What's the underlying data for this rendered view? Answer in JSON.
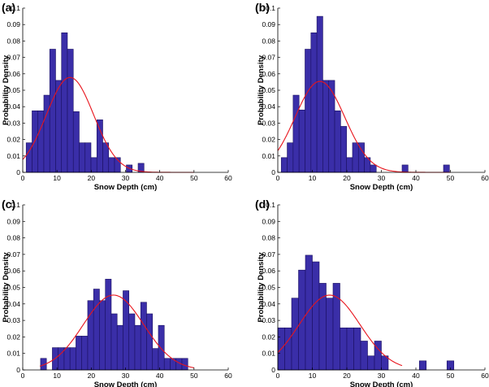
{
  "colors": {
    "bar": "#3a2ea8",
    "fit": "#e8141c"
  },
  "chart_data": [
    {
      "type": "bar",
      "panel_label": "(a)",
      "xlabel": "Snow Depth (cm)",
      "ylabel": "Probability Density",
      "xlim": [
        0,
        60
      ],
      "ylim": [
        0,
        0.1
      ],
      "xticks": [
        "0",
        "10",
        "20",
        "30",
        "40",
        "50",
        "60"
      ],
      "yticks": [
        "0",
        "0.01",
        "0.02",
        "0.03",
        "0.04",
        "0.05",
        "0.06",
        "0.07",
        "0.08",
        "0.09",
        "0.1"
      ],
      "bin_width": 1.72,
      "bins": [
        {
          "x": 1.0,
          "value": 0.018
        },
        {
          "x": 2.72,
          "value": 0.0375
        },
        {
          "x": 4.44,
          "value": 0.0375
        },
        {
          "x": 6.16,
          "value": 0.047
        },
        {
          "x": 7.88,
          "value": 0.075
        },
        {
          "x": 9.6,
          "value": 0.056
        },
        {
          "x": 11.32,
          "value": 0.085
        },
        {
          "x": 13.04,
          "value": 0.075
        },
        {
          "x": 14.76,
          "value": 0.037
        },
        {
          "x": 16.48,
          "value": 0.018
        },
        {
          "x": 18.2,
          "value": 0.018
        },
        {
          "x": 19.92,
          "value": 0.009
        },
        {
          "x": 21.64,
          "value": 0.032
        },
        {
          "x": 23.36,
          "value": 0.018
        },
        {
          "x": 25.08,
          "value": 0.009
        },
        {
          "x": 26.8,
          "value": 0.009
        },
        {
          "x": 30.24,
          "value": 0.0045
        },
        {
          "x": 33.68,
          "value": 0.0055
        }
      ],
      "fit": {
        "name": "Normal fit",
        "mean": 13.8,
        "sd": 6.9,
        "x_range": [
          0,
          50
        ]
      }
    },
    {
      "type": "bar",
      "panel_label": "(b)",
      "xlabel": "Snow Depth (cm)",
      "ylabel": "Probability Density",
      "xlim": [
        0,
        60
      ],
      "ylim": [
        0,
        0.1
      ],
      "xticks": [
        "0",
        "10",
        "20",
        "30",
        "40",
        "50",
        "60"
      ],
      "yticks": [
        "0",
        "0.01",
        "0.02",
        "0.03",
        "0.04",
        "0.05",
        "0.06",
        "0.07",
        "0.08",
        "0.09",
        "0.1"
      ],
      "bin_width": 1.72,
      "bins": [
        {
          "x": 1.0,
          "value": 0.009
        },
        {
          "x": 2.72,
          "value": 0.018
        },
        {
          "x": 4.44,
          "value": 0.047
        },
        {
          "x": 6.16,
          "value": 0.038
        },
        {
          "x": 7.88,
          "value": 0.075
        },
        {
          "x": 9.6,
          "value": 0.085
        },
        {
          "x": 11.32,
          "value": 0.095
        },
        {
          "x": 13.04,
          "value": 0.056
        },
        {
          "x": 14.76,
          "value": 0.056
        },
        {
          "x": 16.48,
          "value": 0.0375
        },
        {
          "x": 18.2,
          "value": 0.028
        },
        {
          "x": 19.92,
          "value": 0.009
        },
        {
          "x": 21.64,
          "value": 0.018
        },
        {
          "x": 23.36,
          "value": 0.018
        },
        {
          "x": 25.08,
          "value": 0.009
        },
        {
          "x": 26.8,
          "value": 0.0045
        },
        {
          "x": 36.0,
          "value": 0.0045
        },
        {
          "x": 48.0,
          "value": 0.0045
        }
      ],
      "fit": {
        "name": "Normal fit",
        "mean": 12.2,
        "sd": 7.2,
        "x_range": [
          0,
          50
        ]
      }
    },
    {
      "type": "bar",
      "panel_label": "(c)",
      "xlabel": "Snow Depth (cm)",
      "ylabel": "Probability Density",
      "xlim": [
        0,
        60
      ],
      "ylim": [
        0,
        0.1
      ],
      "xticks": [
        "0",
        "10",
        "20",
        "30",
        "40",
        "50",
        "60"
      ],
      "yticks": [
        "0",
        "0.01",
        "0.02",
        "0.03",
        "0.04",
        "0.05",
        "0.06",
        "0.07",
        "0.08",
        "0.09",
        "0.1"
      ],
      "bin_width": 1.72,
      "bins": [
        {
          "x": 5.2,
          "value": 0.007
        },
        {
          "x": 8.64,
          "value": 0.0135
        },
        {
          "x": 10.36,
          "value": 0.0135
        },
        {
          "x": 12.08,
          "value": 0.0135
        },
        {
          "x": 13.8,
          "value": 0.0135
        },
        {
          "x": 15.52,
          "value": 0.0205
        },
        {
          "x": 17.24,
          "value": 0.0205
        },
        {
          "x": 18.96,
          "value": 0.042
        },
        {
          "x": 20.68,
          "value": 0.049
        },
        {
          "x": 22.4,
          "value": 0.042
        },
        {
          "x": 24.12,
          "value": 0.055
        },
        {
          "x": 25.84,
          "value": 0.034
        },
        {
          "x": 27.56,
          "value": 0.027
        },
        {
          "x": 29.28,
          "value": 0.048
        },
        {
          "x": 31.0,
          "value": 0.034
        },
        {
          "x": 32.72,
          "value": 0.027
        },
        {
          "x": 34.44,
          "value": 0.041
        },
        {
          "x": 36.16,
          "value": 0.034
        },
        {
          "x": 37.88,
          "value": 0.013
        },
        {
          "x": 39.6,
          "value": 0.027
        },
        {
          "x": 41.32,
          "value": 0.007
        },
        {
          "x": 43.04,
          "value": 0.007
        },
        {
          "x": 44.76,
          "value": 0.007
        },
        {
          "x": 46.48,
          "value": 0.007
        }
      ],
      "fit": {
        "name": "Normal fit",
        "mean": 26.5,
        "sd": 8.8,
        "x_range": [
          5,
          50
        ]
      }
    },
    {
      "type": "bar",
      "panel_label": "(d)",
      "xlabel": "Snow Depth (cm)",
      "ylabel": "Probability Density",
      "xlim": [
        0,
        60
      ],
      "ylim": [
        0,
        0.1
      ],
      "xticks": [
        "0",
        "10",
        "20",
        "30",
        "40",
        "50",
        "60"
      ],
      "yticks": [
        "0",
        "0.01",
        "0.02",
        "0.03",
        "0.04",
        "0.05",
        "0.06",
        "0.07",
        "0.08",
        "0.09",
        "0.1"
      ],
      "bin_width": 2.0,
      "bins": [
        {
          "x": 0.0,
          "value": 0.0255
        },
        {
          "x": 2.0,
          "value": 0.0255
        },
        {
          "x": 4.0,
          "value": 0.0435
        },
        {
          "x": 6.0,
          "value": 0.0605
        },
        {
          "x": 8.0,
          "value": 0.0695
        },
        {
          "x": 10.0,
          "value": 0.0655
        },
        {
          "x": 12.0,
          "value": 0.0525
        },
        {
          "x": 14.0,
          "value": 0.0435
        },
        {
          "x": 16.0,
          "value": 0.0525
        },
        {
          "x": 18.0,
          "value": 0.0255
        },
        {
          "x": 20.0,
          "value": 0.0255
        },
        {
          "x": 22.0,
          "value": 0.0255
        },
        {
          "x": 24.0,
          "value": 0.0175
        },
        {
          "x": 26.0,
          "value": 0.0085
        },
        {
          "x": 28.0,
          "value": 0.0175
        },
        {
          "x": 30.0,
          "value": 0.0085
        },
        {
          "x": 41.0,
          "value": 0.0055
        },
        {
          "x": 49.0,
          "value": 0.0055
        }
      ],
      "fit": {
        "name": "Normal fit",
        "mean": 15.0,
        "sd": 8.8,
        "x_range": [
          0,
          36
        ]
      }
    }
  ]
}
